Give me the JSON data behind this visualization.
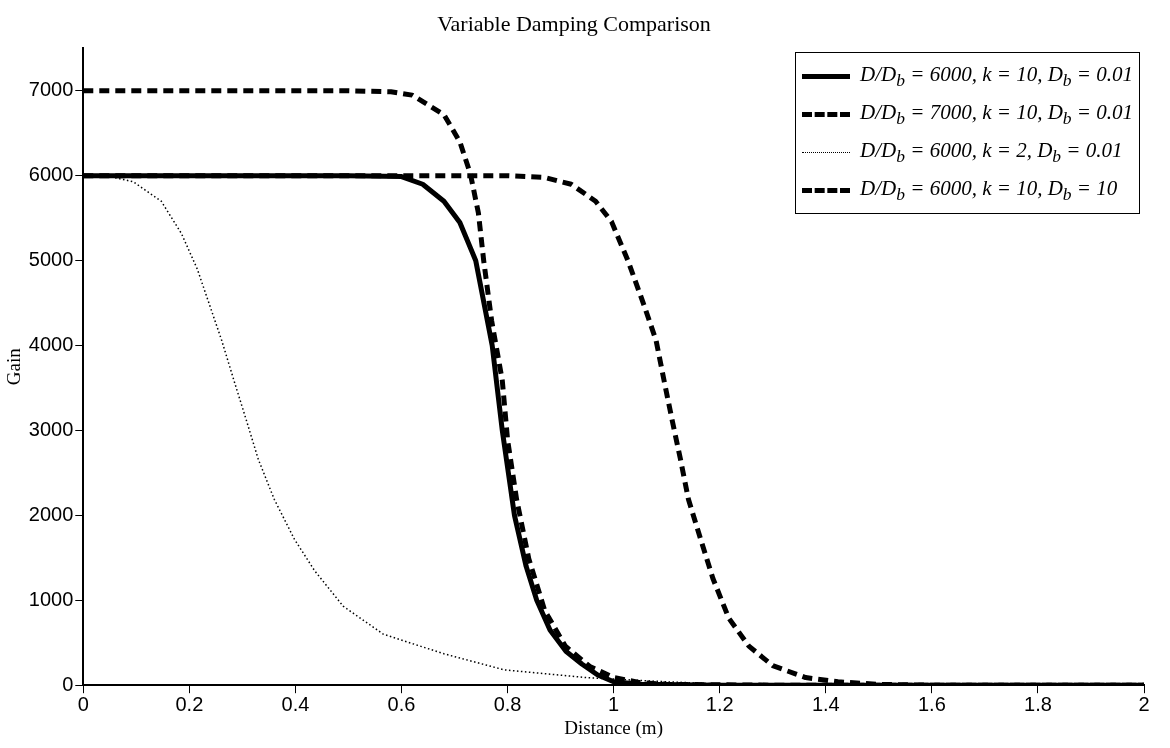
{
  "chart_data": {
    "type": "line",
    "title": "Variable Damping Comparison",
    "xlabel": "Distance (m)",
    "ylabel": "Gain",
    "xlim": [
      0,
      2
    ],
    "xticks": [
      0,
      0.2,
      0.4,
      0.6,
      0.8,
      1,
      1.2,
      1.4,
      1.6,
      1.8,
      2
    ],
    "ylim": [
      0,
      7500
    ],
    "yticks": [
      0,
      1000,
      2000,
      3000,
      4000,
      5000,
      6000,
      7000
    ],
    "grid": false,
    "legend": "top right",
    "marker": "none",
    "series": [
      {
        "name": "D/D$_{b}$ = 6000, k = 10, D$_{b}$ = 0.01",
        "color": "#000000",
        "line_style": "solid",
        "x": [
          0,
          0.5,
          0.6,
          0.64,
          0.68,
          0.71,
          0.74,
          0.771,
          0.79,
          0.813,
          0.835,
          0.855,
          0.88,
          0.91,
          0.94,
          0.97,
          1.0,
          1.05,
          1.2,
          1.5,
          2
        ],
        "values": [
          6000,
          6000,
          5990,
          5900,
          5700,
          5450,
          5000,
          4000,
          3000,
          2000,
          1400,
          1000,
          650,
          400,
          250,
          120,
          40,
          10,
          0,
          0,
          0
        ]
      },
      {
        "name": "D/D$_{b}$ = 7000, k = 10, D$_{b}$ = 0.01",
        "color": "#000000",
        "line_style": "dashed",
        "x": [
          0,
          0.5,
          0.58,
          0.62,
          0.68,
          0.71,
          0.73,
          0.745,
          0.755,
          0.77,
          0.79,
          0.8,
          0.817,
          0.84,
          0.87,
          0.909,
          0.955,
          1.0,
          1.05,
          1.1,
          1.3,
          2
        ],
        "values": [
          7000,
          7000,
          6990,
          6950,
          6720,
          6400,
          6020,
          5560,
          5000,
          4290,
          3590,
          2890,
          2190,
          1490,
          880,
          460,
          220,
          90,
          30,
          10,
          0,
          0
        ]
      },
      {
        "name": "D/D$_{b}$ = 6000, k = 2, D$_{b}$ = 0.01",
        "color": "#000000",
        "line_style": "dotted",
        "x": [
          0,
          0.05,
          0.094,
          0.147,
          0.185,
          0.215,
          0.238,
          0.261,
          0.284,
          0.307,
          0.33,
          0.36,
          0.398,
          0.436,
          0.49,
          0.566,
          0.68,
          0.794,
          0.947,
          1.1,
          1.2,
          1.4,
          2
        ],
        "values": [
          6000,
          5990,
          5930,
          5700,
          5320,
          4900,
          4480,
          4060,
          3590,
          3130,
          2660,
          2190,
          1720,
          1350,
          930,
          600,
          370,
          180,
          90,
          40,
          15,
          0,
          0
        ]
      },
      {
        "name": "D/D$_{b}$ = 6000, k = 10, D$_{b}$ = 10",
        "color": "#000000",
        "line_style": "dashed",
        "x": [
          0,
          0.8,
          0.87,
          0.92,
          0.966,
          0.996,
          1.027,
          1.057,
          1.08,
          1.095,
          1.11,
          1.126,
          1.141,
          1.164,
          1.187,
          1.217,
          1.255,
          1.3,
          1.362,
          1.423,
          1.5,
          1.6,
          2
        ],
        "values": [
          6000,
          6000,
          5980,
          5900,
          5700,
          5460,
          5000,
          4480,
          4060,
          3590,
          3130,
          2660,
          2190,
          1720,
          1260,
          790,
          460,
          230,
          90,
          40,
          10,
          0,
          0
        ]
      }
    ]
  }
}
